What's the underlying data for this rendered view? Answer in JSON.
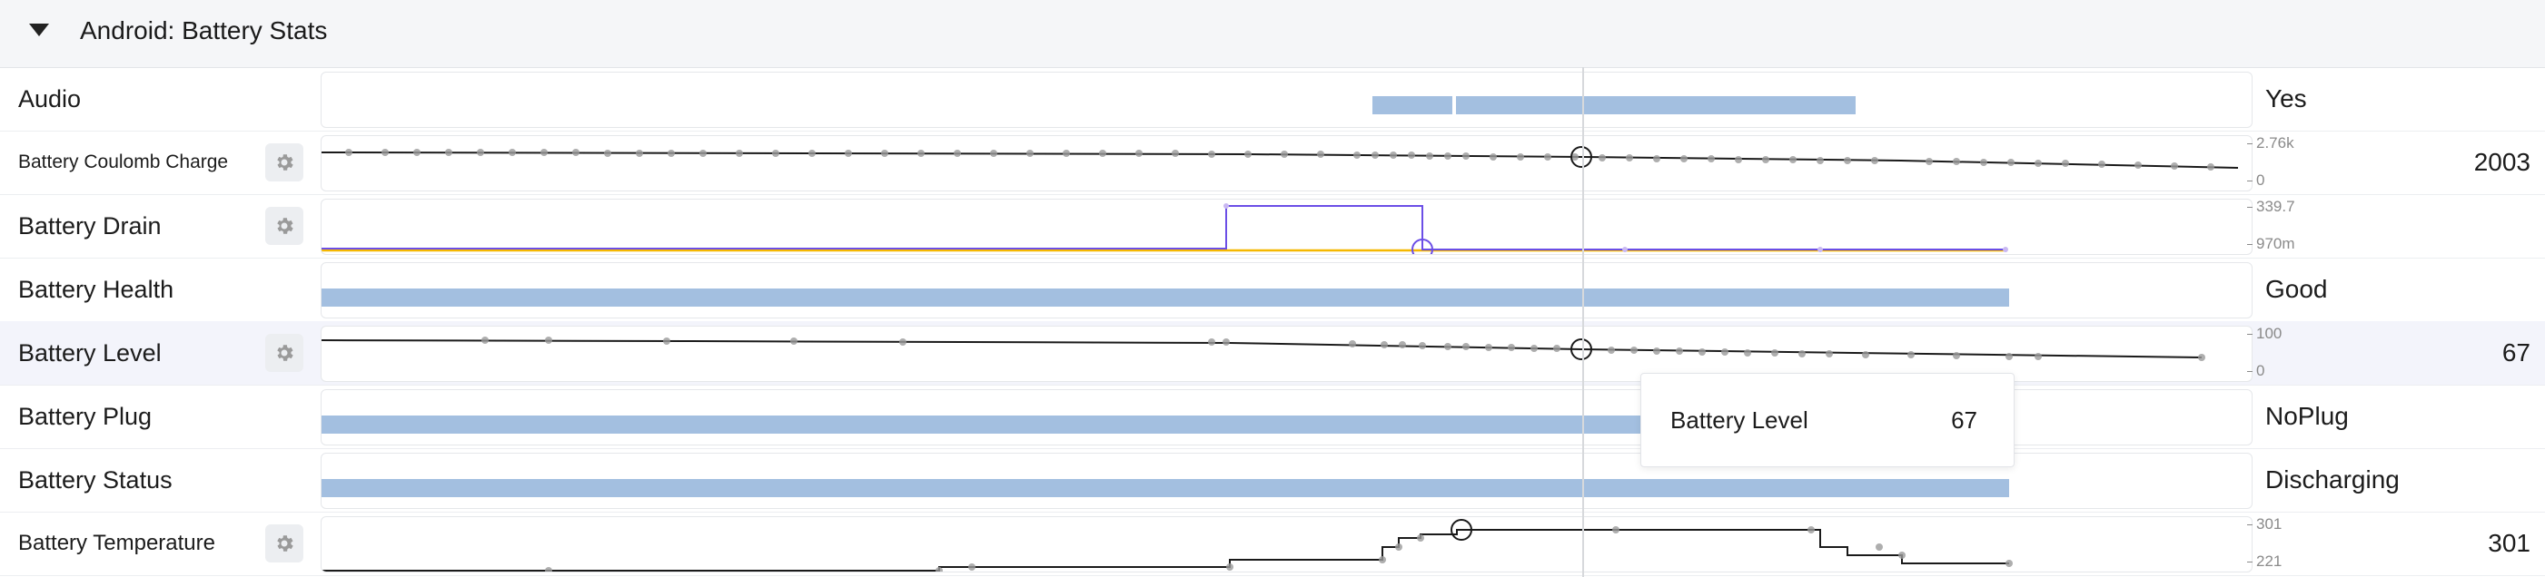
{
  "header": {
    "title": "Android: Battery Stats"
  },
  "tracks": [
    {
      "label": "Audio",
      "gear": false,
      "right_text": "Yes",
      "right_value": "",
      "ticks": []
    },
    {
      "label": "Battery Coulomb Charge",
      "gear": true,
      "right_text": "",
      "right_value": "2003",
      "ticks": [
        "2.76k",
        "0"
      ]
    },
    {
      "label": "Battery Drain",
      "gear": true,
      "right_text": "",
      "right_value": "",
      "ticks": [
        "339.7",
        "970m"
      ]
    },
    {
      "label": "Battery Health",
      "gear": false,
      "right_text": "Good",
      "right_value": "",
      "ticks": []
    },
    {
      "label": "Battery Level",
      "gear": true,
      "right_text": "",
      "right_value": "67",
      "ticks": [
        "100",
        "0"
      ]
    },
    {
      "label": "Battery Plug",
      "gear": false,
      "right_text": "NoPlug",
      "right_value": "",
      "ticks": []
    },
    {
      "label": "Battery Status",
      "gear": false,
      "right_text": "Discharging",
      "right_value": "",
      "ticks": []
    },
    {
      "label": "Battery Temperature",
      "gear": true,
      "right_text": "",
      "right_value": "301",
      "ticks": [
        "301",
        "221"
      ]
    }
  ],
  "tooltip": {
    "label": "Battery Level",
    "value": "67"
  },
  "colors": {
    "slice": "#a3bfe0",
    "line": "#1a1a1a",
    "drain_purple": "#6b4ee6",
    "drain_yellow": "#f5b800",
    "point": "#9a9a9a"
  }
}
